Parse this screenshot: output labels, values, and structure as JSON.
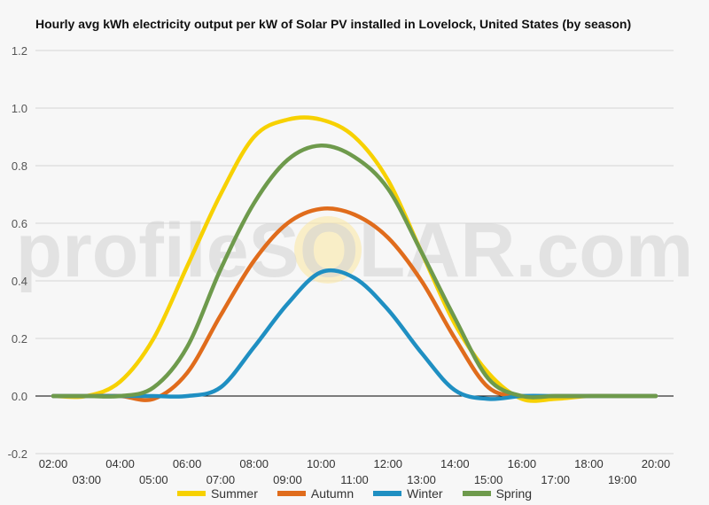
{
  "chart_data": {
    "type": "line",
    "title": "Hourly avg kWh electricity output per kW of Solar PV installed in Lovelock, United States (by season)",
    "xlabel": "",
    "ylabel": "",
    "ylim": [
      -0.2,
      1.2
    ],
    "y_ticks": [
      "-0.2",
      "0.0",
      "0.2",
      "0.4",
      "0.6",
      "0.8",
      "1.0",
      "1.2"
    ],
    "categories": [
      "02:00",
      "03:00",
      "04:00",
      "05:00",
      "06:00",
      "07:00",
      "08:00",
      "09:00",
      "10:00",
      "11:00",
      "12:00",
      "13:00",
      "14:00",
      "15:00",
      "16:00",
      "17:00",
      "18:00",
      "19:00",
      "20:00"
    ],
    "grid": true,
    "legend_position": "bottom",
    "series": [
      {
        "name": "Summer",
        "color": "#f7d100",
        "values": [
          0,
          0,
          0.05,
          0.2,
          0.45,
          0.7,
          0.9,
          0.96,
          0.96,
          0.9,
          0.75,
          0.5,
          0.25,
          0.08,
          -0.01,
          -0.01,
          0,
          0,
          0
        ]
      },
      {
        "name": "Autumn",
        "color": "#e06c1c",
        "values": [
          0,
          0,
          0,
          -0.01,
          0.08,
          0.28,
          0.47,
          0.6,
          0.65,
          0.63,
          0.55,
          0.4,
          0.2,
          0.03,
          0,
          0,
          0,
          0,
          0
        ]
      },
      {
        "name": "Winter",
        "color": "#1f8fc2",
        "values": [
          0,
          0,
          0,
          0,
          0,
          0.03,
          0.17,
          0.32,
          0.43,
          0.41,
          0.3,
          0.15,
          0.02,
          -0.01,
          0,
          0,
          0,
          0,
          0
        ]
      },
      {
        "name": "Spring",
        "color": "#6e9a4c",
        "values": [
          0,
          0,
          0,
          0.03,
          0.17,
          0.44,
          0.67,
          0.82,
          0.87,
          0.83,
          0.72,
          0.5,
          0.27,
          0.06,
          0,
          0,
          0,
          0,
          0
        ]
      }
    ]
  },
  "watermark": "profileSOLAR.com"
}
